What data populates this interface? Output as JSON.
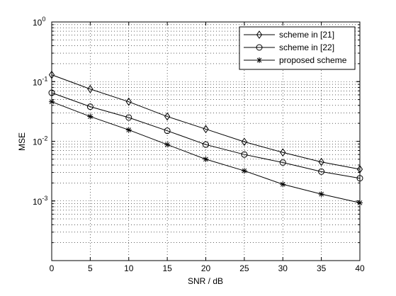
{
  "chart_data": {
    "type": "line",
    "xlabel": "SNR / dB",
    "ylabel": "MSE",
    "xlim": [
      0,
      40
    ],
    "ylim": [
      0.0001,
      1
    ],
    "yscale": "log",
    "x_ticks": [
      "0",
      "5",
      "10",
      "15",
      "20",
      "25",
      "30",
      "35",
      "40"
    ],
    "y_ticks": [
      {
        "base": "10",
        "exp": "0"
      },
      {
        "base": "10",
        "exp": "-1"
      },
      {
        "base": "10",
        "exp": "-2"
      },
      {
        "base": "10",
        "exp": "-3"
      }
    ],
    "grid": "dotted, major and minor",
    "legend_position": "top-right",
    "x": [
      0,
      5,
      10,
      15,
      20,
      25,
      30,
      35,
      40
    ],
    "series": [
      {
        "name": "scheme in [21]",
        "marker": "diamond",
        "color": "#000000",
        "values": [
          0.13,
          0.075,
          0.046,
          0.026,
          0.016,
          0.0098,
          0.0065,
          0.0045,
          0.0034
        ]
      },
      {
        "name": "scheme in [22]",
        "marker": "circle",
        "color": "#000000",
        "values": [
          0.065,
          0.038,
          0.025,
          0.015,
          0.0088,
          0.006,
          0.0044,
          0.0031,
          0.0024
        ]
      },
      {
        "name": "proposed scheme",
        "marker": "star",
        "color": "#000000",
        "values": [
          0.046,
          0.026,
          0.0155,
          0.0088,
          0.005,
          0.0032,
          0.0019,
          0.0013,
          0.00093
        ]
      }
    ]
  }
}
